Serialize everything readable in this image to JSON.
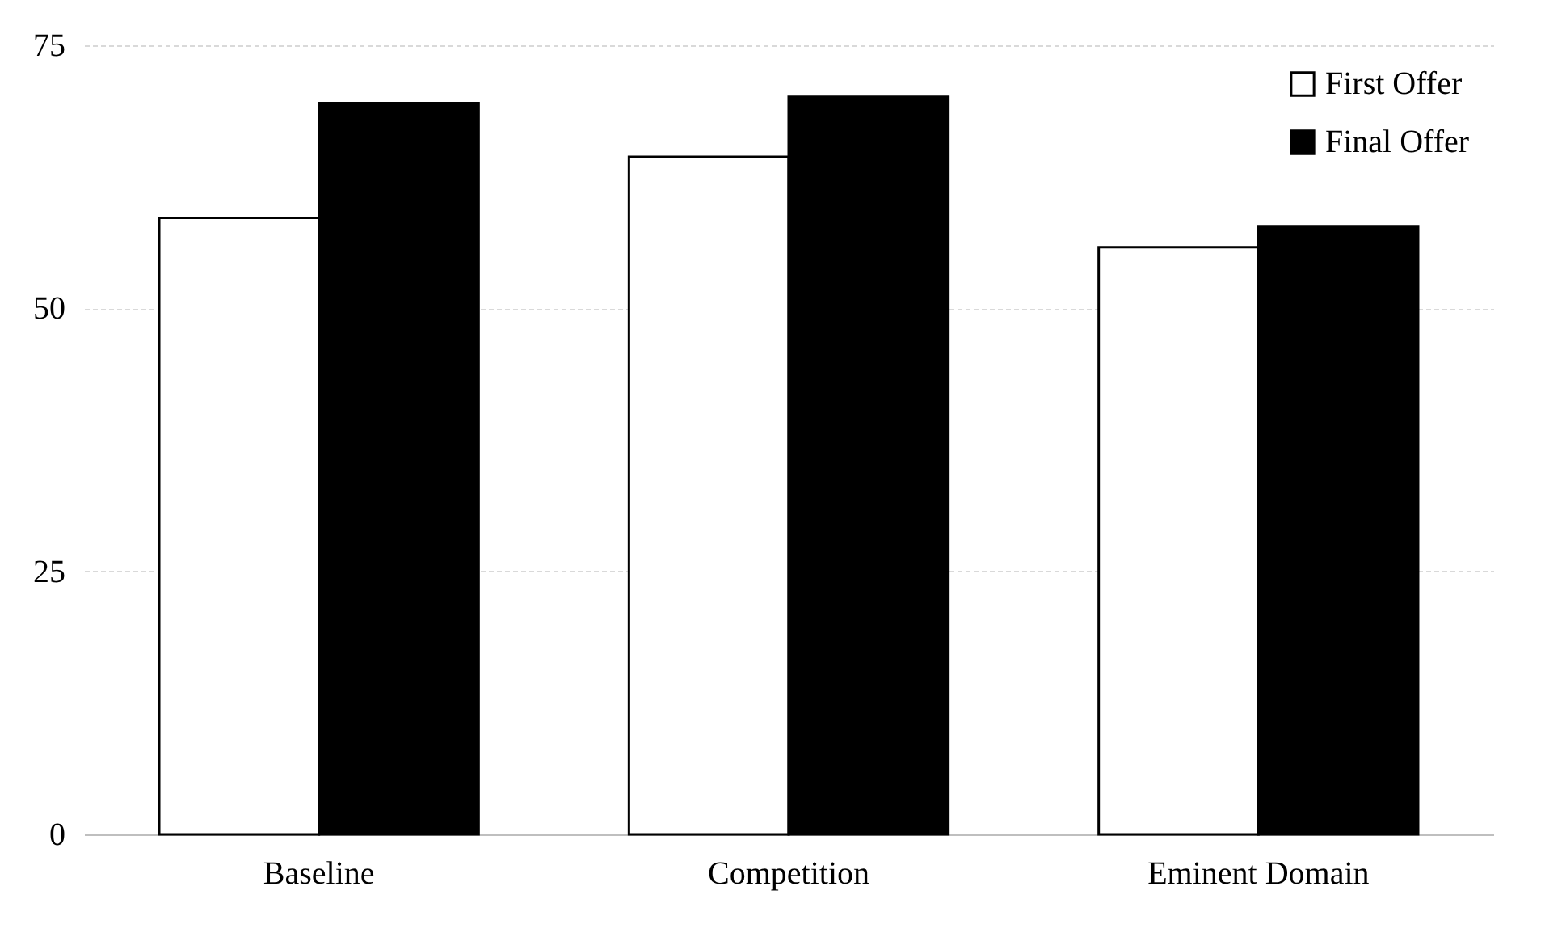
{
  "chart_data": {
    "type": "bar",
    "categories": [
      "Baseline",
      "Competition",
      "Eminent Domain"
    ],
    "series": [
      {
        "name": "First Offer",
        "color": "#ffffff",
        "values": [
          58.6,
          64.4,
          55.8
        ]
      },
      {
        "name": "Final Offer",
        "color": "#000000",
        "values": [
          69.5,
          70.1,
          57.8
        ]
      }
    ],
    "ylim": [
      0,
      75
    ],
    "yticks": [
      0,
      25,
      50,
      75
    ],
    "grid": "y",
    "legend": "top right"
  }
}
